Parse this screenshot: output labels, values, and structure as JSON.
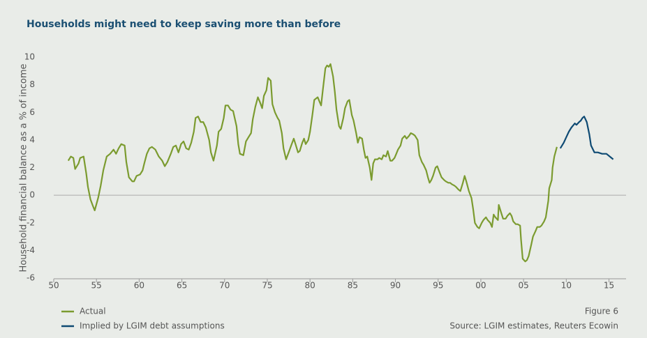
{
  "chart_data": {
    "type": "line",
    "title": "Households might need to keep saving more than before",
    "ylabel": "Household financial balance as a % of income",
    "note": "Figure 6",
    "source": "Source: LGIM estimates, Reuters  Ecowin",
    "xlim": [
      1950,
      2017
    ],
    "xticks": [
      {
        "value": 1950,
        "label": "50"
      },
      {
        "value": 1955,
        "label": "55"
      },
      {
        "value": 1960,
        "label": "60"
      },
      {
        "value": 1965,
        "label": "65"
      },
      {
        "value": 1970,
        "label": "70"
      },
      {
        "value": 1975,
        "label": "75"
      },
      {
        "value": 1980,
        "label": "80"
      },
      {
        "value": 1985,
        "label": "85"
      },
      {
        "value": 1990,
        "label": "90"
      },
      {
        "value": 1995,
        "label": "95"
      },
      {
        "value": 2000,
        "label": "00"
      },
      {
        "value": 2005,
        "label": "05"
      },
      {
        "value": 2010,
        "label": "10"
      },
      {
        "value": 2015,
        "label": "15"
      }
    ],
    "ylim": [
      -6,
      10
    ],
    "yticks": [
      -6,
      -4,
      -2,
      0,
      2,
      4,
      6,
      8,
      10
    ],
    "series": [
      {
        "name": "Actual",
        "color": "#7b9b2f",
        "x": [
          1951.7,
          1952.0,
          1952.3,
          1952.5,
          1952.9,
          1953.1,
          1953.5,
          1953.8,
          1954.0,
          1954.3,
          1954.6,
          1954.8,
          1955.2,
          1955.5,
          1955.8,
          1956.2,
          1956.6,
          1957.0,
          1957.3,
          1957.6,
          1957.9,
          1958.3,
          1958.5,
          1958.8,
          1959.2,
          1959.4,
          1959.7,
          1960.1,
          1960.4,
          1960.6,
          1960.9,
          1961.2,
          1961.5,
          1961.9,
          1962.3,
          1962.7,
          1963.0,
          1963.3,
          1963.7,
          1964.0,
          1964.3,
          1964.6,
          1964.9,
          1965.2,
          1965.5,
          1965.8,
          1966.1,
          1966.4,
          1966.6,
          1966.9,
          1967.2,
          1967.5,
          1967.8,
          1968.2,
          1968.4,
          1968.7,
          1969.1,
          1969.3,
          1969.6,
          1969.9,
          1970.1,
          1970.4,
          1970.7,
          1971.0,
          1971.4,
          1971.6,
          1971.8,
          1972.2,
          1972.5,
          1972.8,
          1973.1,
          1973.3,
          1973.6,
          1973.9,
          1974.1,
          1974.4,
          1974.6,
          1974.9,
          1975.1,
          1975.4,
          1975.6,
          1975.9,
          1976.2,
          1976.4,
          1976.7,
          1976.9,
          1977.2,
          1977.5,
          1977.8,
          1978.1,
          1978.3,
          1978.6,
          1978.8,
          1979.1,
          1979.3,
          1979.5,
          1979.8,
          1980.0,
          1980.3,
          1980.5,
          1980.9,
          1981.1,
          1981.3,
          1981.5,
          1981.8,
          1982.0,
          1982.2,
          1982.4,
          1982.7,
          1982.9,
          1983.1,
          1983.4,
          1983.6,
          1983.9,
          1984.1,
          1984.4,
          1984.6,
          1984.9,
          1985.1,
          1985.4,
          1985.6,
          1985.8,
          1986.1,
          1986.3,
          1986.5,
          1986.7,
          1987.0,
          1987.2,
          1987.4,
          1987.6,
          1987.9,
          1988.1,
          1988.4,
          1988.6,
          1988.9,
          1989.1,
          1989.4,
          1989.6,
          1989.9,
          1990.1,
          1990.3,
          1990.6,
          1990.8,
          1991.1,
          1991.3,
          1991.6,
          1991.8,
          1992.1,
          1992.3,
          1992.6,
          1992.8,
          1993.1,
          1993.3,
          1993.6,
          1993.8,
          1994.0,
          1994.2,
          1994.4,
          1994.7,
          1994.9,
          1995.2,
          1995.4,
          1995.7,
          1995.9,
          1996.2,
          1996.4,
          1996.6,
          1996.9,
          1997.1,
          1997.4,
          1997.6,
          1997.9,
          1998.1,
          1998.3,
          1998.6,
          1998.9,
          1999.1,
          1999.3,
          1999.6,
          1999.8,
          2000.1,
          2000.3,
          2000.6,
          2000.8,
          2001.1,
          2001.3,
          2001.5,
          2001.7,
          2002.0,
          2002.1,
          2002.4,
          2002.6,
          2002.9,
          2003.1,
          2003.4,
          2003.6,
          2003.8,
          2004.1,
          2004.3,
          2004.6,
          2004.7,
          2004.9,
          2005.2,
          2005.4,
          2005.6,
          2005.9,
          2006.1,
          2006.4,
          2006.6,
          2006.9,
          2007.1,
          2007.4,
          2007.6,
          2007.9,
          2008.0,
          2008.3,
          2008.4,
          2008.6,
          2008.9
        ],
        "values": [
          2.5,
          2.8,
          2.7,
          1.9,
          2.3,
          2.7,
          2.8,
          1.6,
          0.6,
          -0.3,
          -0.8,
          -1.1,
          -0.2,
          0.7,
          1.8,
          2.8,
          3.0,
          3.3,
          3.0,
          3.4,
          3.7,
          3.6,
          2.4,
          1.3,
          1.0,
          1.0,
          1.4,
          1.5,
          1.8,
          2.3,
          3.0,
          3.4,
          3.5,
          3.3,
          2.8,
          2.5,
          2.1,
          2.4,
          3.0,
          3.5,
          3.6,
          3.1,
          3.7,
          3.9,
          3.4,
          3.3,
          3.8,
          4.6,
          5.6,
          5.7,
          5.3,
          5.3,
          4.9,
          4.0,
          3.1,
          2.5,
          3.6,
          4.6,
          4.8,
          5.6,
          6.5,
          6.5,
          6.2,
          6.1,
          5.0,
          3.7,
          3.0,
          2.9,
          3.9,
          4.2,
          4.5,
          5.5,
          6.4,
          7.1,
          6.8,
          6.3,
          7.2,
          7.6,
          8.5,
          8.3,
          6.6,
          6.0,
          5.6,
          5.4,
          4.5,
          3.4,
          2.6,
          3.1,
          3.6,
          4.1,
          3.7,
          3.1,
          3.2,
          3.8,
          4.1,
          3.7,
          4.0,
          4.6,
          5.9,
          6.9,
          7.1,
          6.8,
          6.5,
          7.6,
          9.2,
          9.4,
          9.3,
          9.5,
          8.6,
          7.5,
          6.2,
          5.0,
          4.8,
          5.6,
          6.3,
          6.8,
          6.9,
          5.8,
          5.4,
          4.5,
          3.8,
          4.2,
          4.1,
          3.3,
          2.7,
          2.8,
          2.0,
          1.1,
          2.3,
          2.6,
          2.6,
          2.7,
          2.6,
          2.9,
          2.8,
          3.2,
          2.5,
          2.5,
          2.7,
          3.0,
          3.3,
          3.6,
          4.1,
          4.3,
          4.1,
          4.3,
          4.5,
          4.4,
          4.3,
          4.0,
          2.9,
          2.4,
          2.2,
          1.8,
          1.3,
          0.9,
          1.1,
          1.4,
          2.0,
          2.1,
          1.6,
          1.3,
          1.1,
          1.0,
          0.9,
          0.9,
          0.8,
          0.7,
          0.6,
          0.4,
          0.3,
          0.9,
          1.4,
          1.0,
          0.3,
          -0.2,
          -1.0,
          -2.0,
          -2.3,
          -2.4,
          -2.0,
          -1.8,
          -1.6,
          -1.8,
          -2.0,
          -2.3,
          -1.4,
          -1.6,
          -1.8,
          -0.7,
          -1.3,
          -1.7,
          -1.7,
          -1.5,
          -1.3,
          -1.5,
          -1.9,
          -2.1,
          -2.1,
          -2.2,
          -3.2,
          -4.6,
          -4.8,
          -4.7,
          -4.4,
          -3.6,
          -3.0,
          -2.6,
          -2.3,
          -2.3,
          -2.2,
          -1.9,
          -1.6,
          -0.4,
          0.5,
          1.1,
          2.0,
          2.8,
          3.5
        ]
      },
      {
        "name": "Implied by LGIM debt assumptions",
        "color": "#0e4a73",
        "x": [
          2009.3,
          2009.7,
          2010.0,
          2010.3,
          2010.6,
          2011.0,
          2011.2,
          2011.5,
          2011.7,
          2011.9,
          2012.1,
          2012.4,
          2012.7,
          2012.9,
          2013.3,
          2013.7,
          2014.2,
          2014.7,
          2015.1,
          2015.5
        ],
        "values": [
          3.4,
          3.8,
          4.2,
          4.6,
          4.9,
          5.2,
          5.1,
          5.3,
          5.4,
          5.6,
          5.7,
          5.3,
          4.4,
          3.6,
          3.1,
          3.1,
          3.0,
          3.0,
          2.8,
          2.6
        ]
      }
    ]
  }
}
